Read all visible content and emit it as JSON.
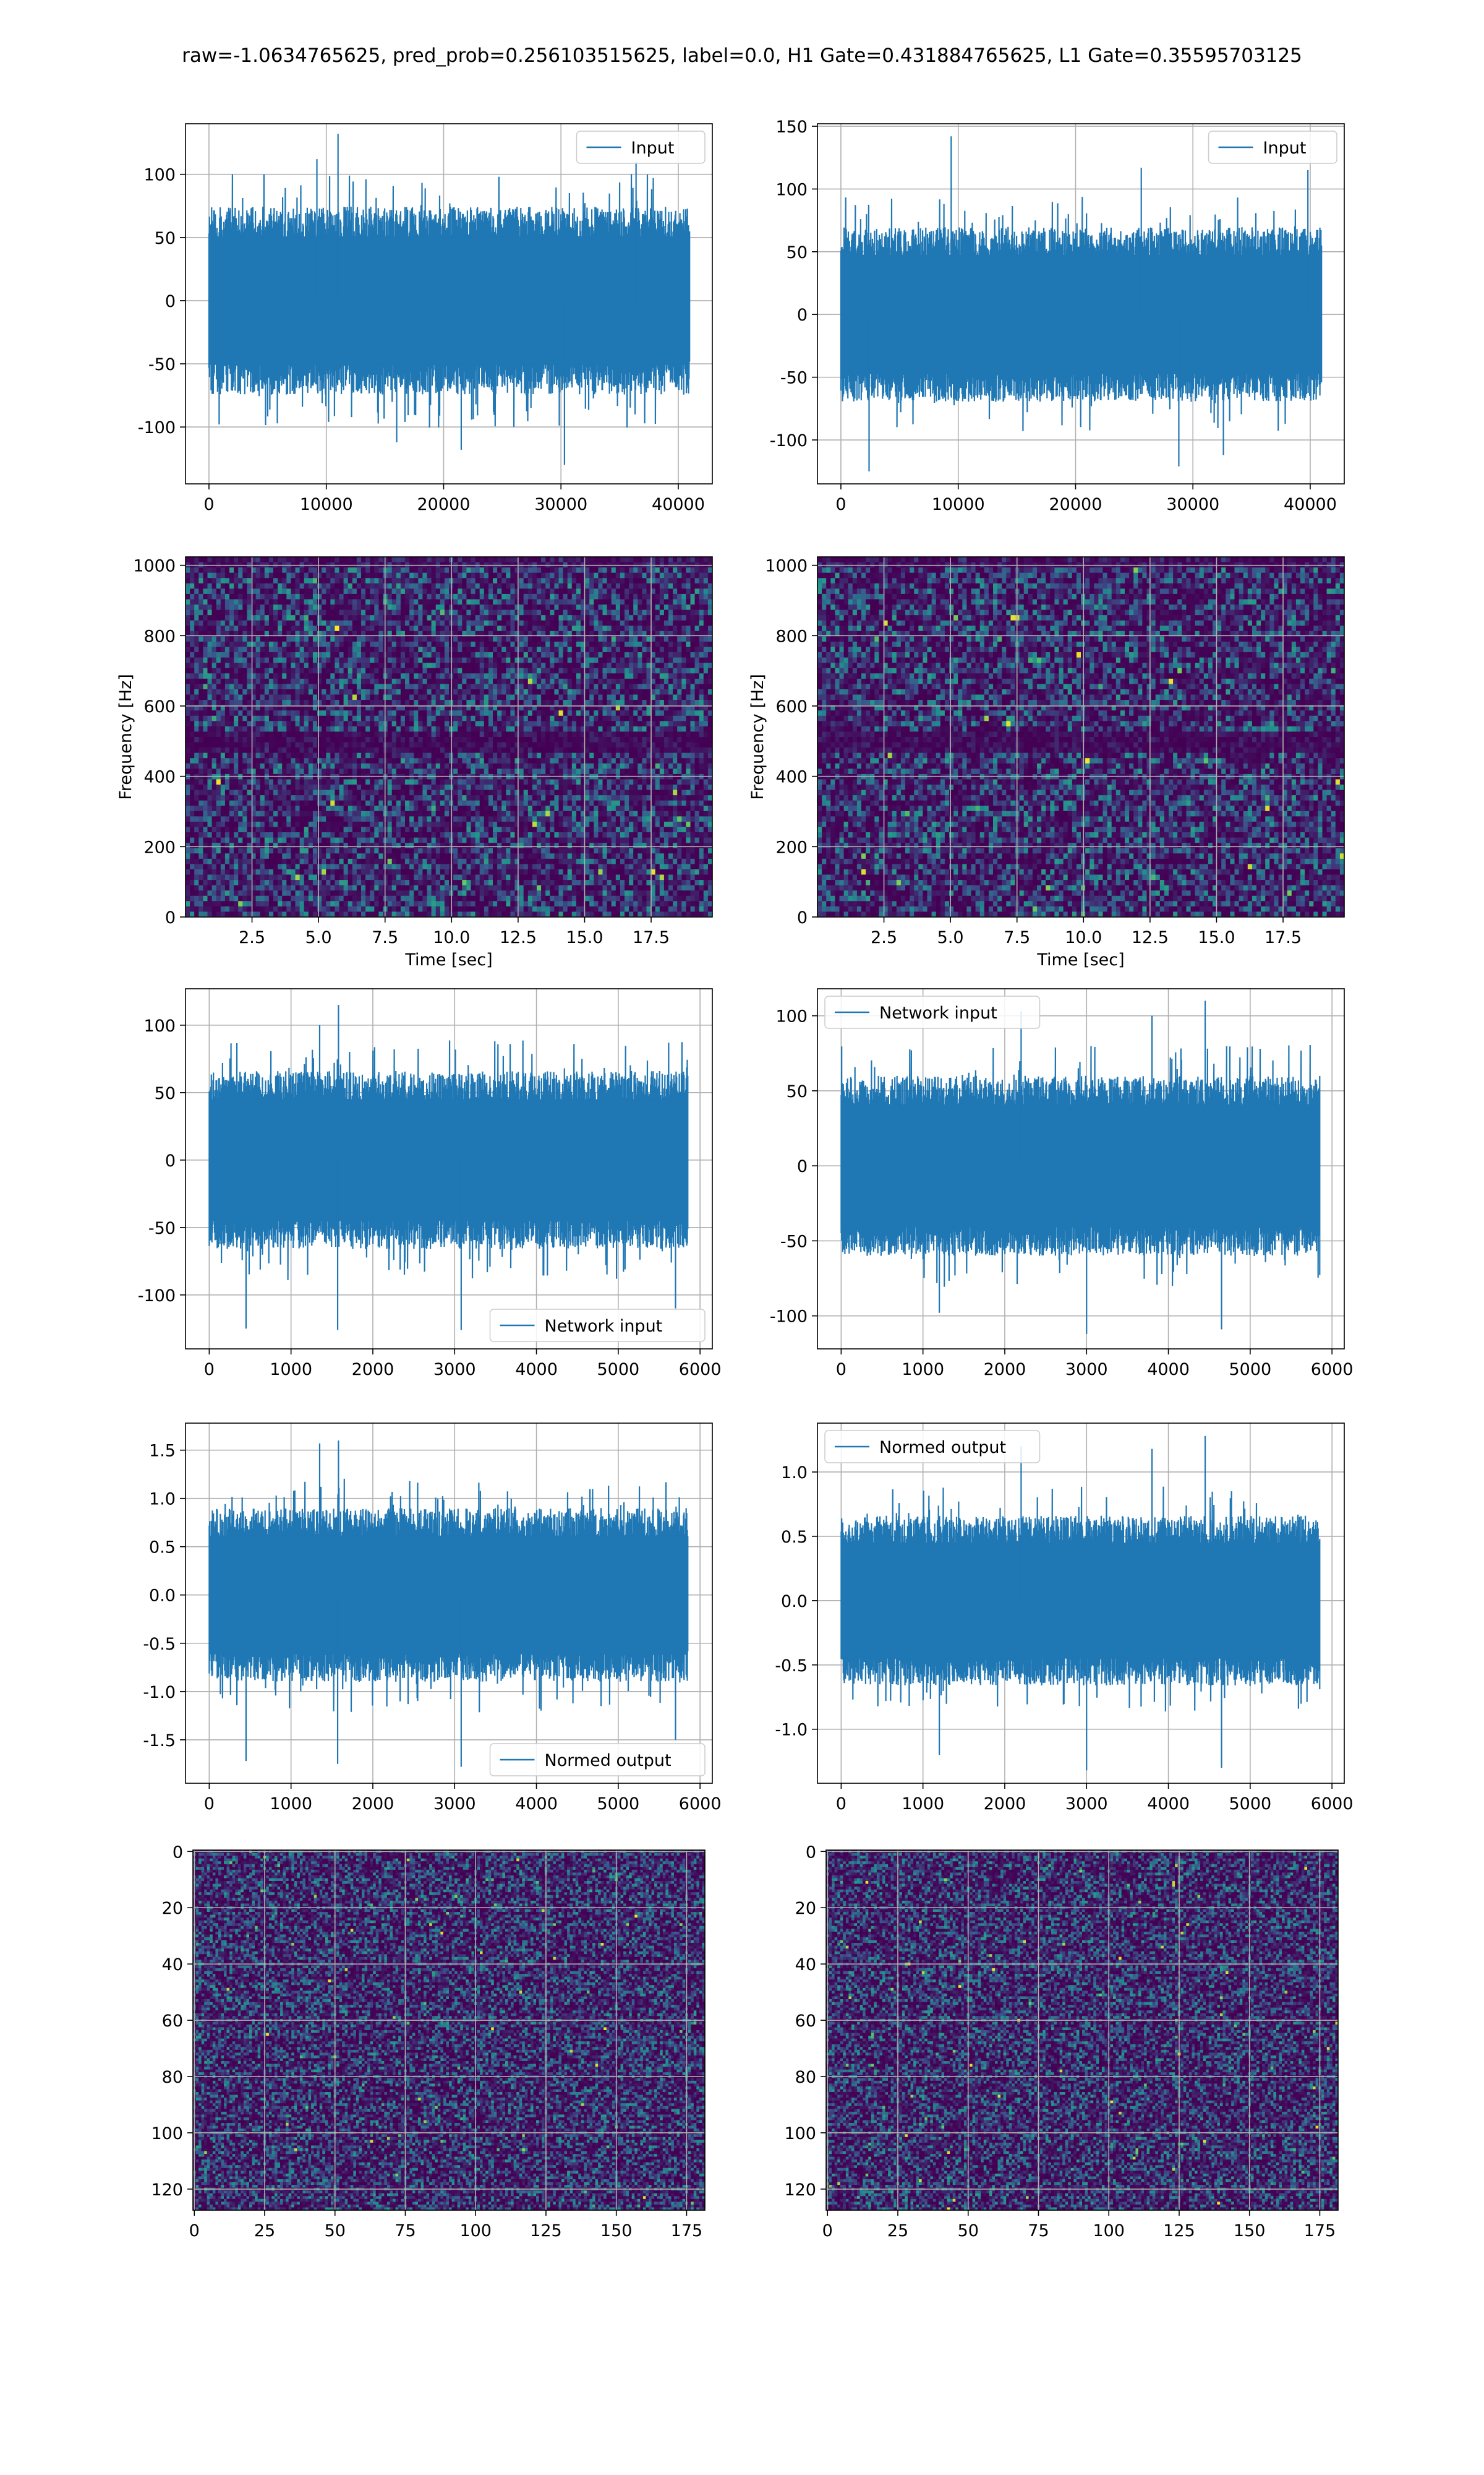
{
  "figure": {
    "title": "raw=-1.0634765625, pred_prob=0.256103515625, label=0.0, H1 Gate=0.431884765625, L1 Gate=0.35595703125",
    "colors": {
      "line": "#1f77b4",
      "grid": "#b0b0b0",
      "axis": "#000000"
    },
    "colormap": [
      "#440154",
      "#3b528b",
      "#21908d",
      "#5dc963",
      "#fde725"
    ]
  },
  "chart_data": [
    {
      "id": "h1_input",
      "type": "line",
      "legend": "Input",
      "legend_loc": "upper right",
      "xlim": [
        -2000,
        42900
      ],
      "ylim": [
        -145,
        140
      ],
      "xticks": [
        0,
        10000,
        20000,
        30000,
        40000
      ],
      "yticks": [
        -100,
        -50,
        0,
        50,
        100
      ],
      "series": [
        {
          "name": "Input",
          "n": 40960,
          "x_range": [
            0,
            40960
          ],
          "mean": 0,
          "envelope": [
            -62,
            62
          ],
          "spikes": [
            [
              11000,
              132
            ],
            [
              16000,
              -112
            ],
            [
              30300,
              -130
            ],
            [
              9200,
              112
            ],
            [
              21500,
              -118
            ],
            [
              36400,
              110
            ]
          ]
        }
      ]
    },
    {
      "id": "l1_input",
      "type": "line",
      "legend": "Input",
      "legend_loc": "upper right",
      "xlim": [
        -2000,
        42900
      ],
      "ylim": [
        -135,
        152
      ],
      "xticks": [
        0,
        10000,
        20000,
        30000,
        40000
      ],
      "yticks": [
        -100,
        -50,
        0,
        50,
        100,
        150
      ],
      "series": [
        {
          "name": "Input",
          "n": 40960,
          "x_range": [
            0,
            40960
          ],
          "mean": 0,
          "envelope": [
            -58,
            58
          ],
          "spikes": [
            [
              9400,
              142
            ],
            [
              2400,
              -125
            ],
            [
              28800,
              -121
            ],
            [
              25600,
              117
            ],
            [
              32600,
              -112
            ],
            [
              39800,
              115
            ]
          ]
        }
      ]
    },
    {
      "id": "h1_spectrogram",
      "type": "heatmap",
      "xlabel": "Time [sec]",
      "ylabel": "Frequency [Hz]",
      "xlim": [
        0,
        19.8
      ],
      "ylim": [
        0,
        1024
      ],
      "xticks": [
        2.5,
        5.0,
        7.5,
        10.0,
        12.5,
        15.0,
        17.5
      ],
      "yticks": [
        0,
        200,
        400,
        600,
        800,
        1000
      ],
      "dark_band_hz": [
        500,
        60
      ],
      "cells": [
        120,
        68
      ],
      "seed": 11
    },
    {
      "id": "l1_spectrogram",
      "type": "heatmap",
      "xlabel": "Time [sec]",
      "ylabel": "Frequency [Hz]",
      "xlim": [
        0,
        19.8
      ],
      "ylim": [
        0,
        1024
      ],
      "xticks": [
        2.5,
        5.0,
        7.5,
        10.0,
        12.5,
        15.0,
        17.5
      ],
      "yticks": [
        0,
        200,
        400,
        600,
        800,
        1000
      ],
      "dark_band_hz": [
        500,
        60
      ],
      "cells": [
        120,
        68
      ],
      "seed": 23
    },
    {
      "id": "h1_network_input",
      "type": "line",
      "legend": "Network input",
      "legend_loc": "lower right",
      "xlim": [
        -290,
        6150
      ],
      "ylim": [
        -140,
        127
      ],
      "xticks": [
        0,
        1000,
        2000,
        3000,
        4000,
        5000,
        6000
      ],
      "yticks": [
        -100,
        -50,
        0,
        50,
        100
      ],
      "series": [
        {
          "name": "Network input",
          "n": 5850,
          "x_range": [
            0,
            5850
          ],
          "mean": 0,
          "envelope": [
            -55,
            55
          ],
          "spikes": [
            [
              1580,
              115
            ],
            [
              1570,
              -126
            ],
            [
              450,
              -125
            ],
            [
              3080,
              -126
            ],
            [
              1350,
              100
            ],
            [
              5700,
              -110
            ]
          ]
        }
      ]
    },
    {
      "id": "l1_network_input",
      "type": "line",
      "legend": "Network input",
      "legend_loc": "upper left",
      "xlim": [
        -290,
        6150
      ],
      "ylim": [
        -122,
        118
      ],
      "xticks": [
        0,
        1000,
        2000,
        3000,
        4000,
        5000,
        6000
      ],
      "yticks": [
        -100,
        -50,
        0,
        50,
        100
      ],
      "series": [
        {
          "name": "Network input",
          "n": 5850,
          "x_range": [
            0,
            5850
          ],
          "mean": 0,
          "envelope": [
            -50,
            50
          ],
          "spikes": [
            [
              4450,
              110
            ],
            [
              3000,
              -112
            ],
            [
              4650,
              -109
            ],
            [
              2200,
              103
            ],
            [
              1200,
              -98
            ],
            [
              3800,
              100
            ]
          ]
        }
      ]
    },
    {
      "id": "h1_normed_output",
      "type": "line",
      "legend": "Normed output",
      "legend_loc": "lower right",
      "xlim": [
        -290,
        6150
      ],
      "ylim": [
        -1.95,
        1.78
      ],
      "xticks": [
        0,
        1000,
        2000,
        3000,
        4000,
        5000,
        6000
      ],
      "yticks": [
        -1.5,
        -1.0,
        -0.5,
        0.0,
        0.5,
        1.0,
        1.5
      ],
      "series": [
        {
          "name": "Normed output",
          "n": 5850,
          "x_range": [
            0,
            5850
          ],
          "mean": 0,
          "envelope": [
            -0.75,
            0.75
          ],
          "spikes": [
            [
              1580,
              1.6
            ],
            [
              3080,
              -1.78
            ],
            [
              450,
              -1.72
            ],
            [
              1570,
              -1.75
            ],
            [
              1350,
              1.57
            ],
            [
              5700,
              -1.5
            ]
          ]
        }
      ]
    },
    {
      "id": "l1_normed_output",
      "type": "line",
      "legend": "Normed output",
      "legend_loc": "upper left",
      "xlim": [
        -290,
        6150
      ],
      "ylim": [
        -1.42,
        1.38
      ],
      "xticks": [
        0,
        1000,
        2000,
        3000,
        4000,
        5000,
        6000
      ],
      "yticks": [
        -1.0,
        -0.5,
        0.0,
        0.5,
        1.0
      ],
      "series": [
        {
          "name": "Normed output",
          "n": 5850,
          "x_range": [
            0,
            5850
          ],
          "mean": 0,
          "envelope": [
            -0.55,
            0.55
          ],
          "spikes": [
            [
              4450,
              1.28
            ],
            [
              3000,
              -1.32
            ],
            [
              4650,
              -1.3
            ],
            [
              2200,
              1.2
            ],
            [
              1200,
              -1.2
            ],
            [
              3800,
              1.18
            ]
          ]
        }
      ]
    },
    {
      "id": "h1_network_image",
      "type": "heatmap",
      "invert_y": true,
      "xlim": [
        -0.5,
        181.5
      ],
      "ylim": [
        -0.5,
        127.5
      ],
      "xticks": [
        0,
        25,
        50,
        75,
        100,
        125,
        150,
        175
      ],
      "yticks": [
        0,
        20,
        40,
        60,
        80,
        100,
        120
      ],
      "cells": [
        182,
        128
      ],
      "seed": 37
    },
    {
      "id": "l1_network_image",
      "type": "heatmap",
      "invert_y": true,
      "xlim": [
        -0.5,
        181.5
      ],
      "ylim": [
        -0.5,
        127.5
      ],
      "xticks": [
        0,
        25,
        50,
        75,
        100,
        125,
        150,
        175
      ],
      "yticks": [
        0,
        20,
        40,
        60,
        80,
        100,
        120
      ],
      "cells": [
        182,
        128
      ],
      "seed": 53
    }
  ]
}
